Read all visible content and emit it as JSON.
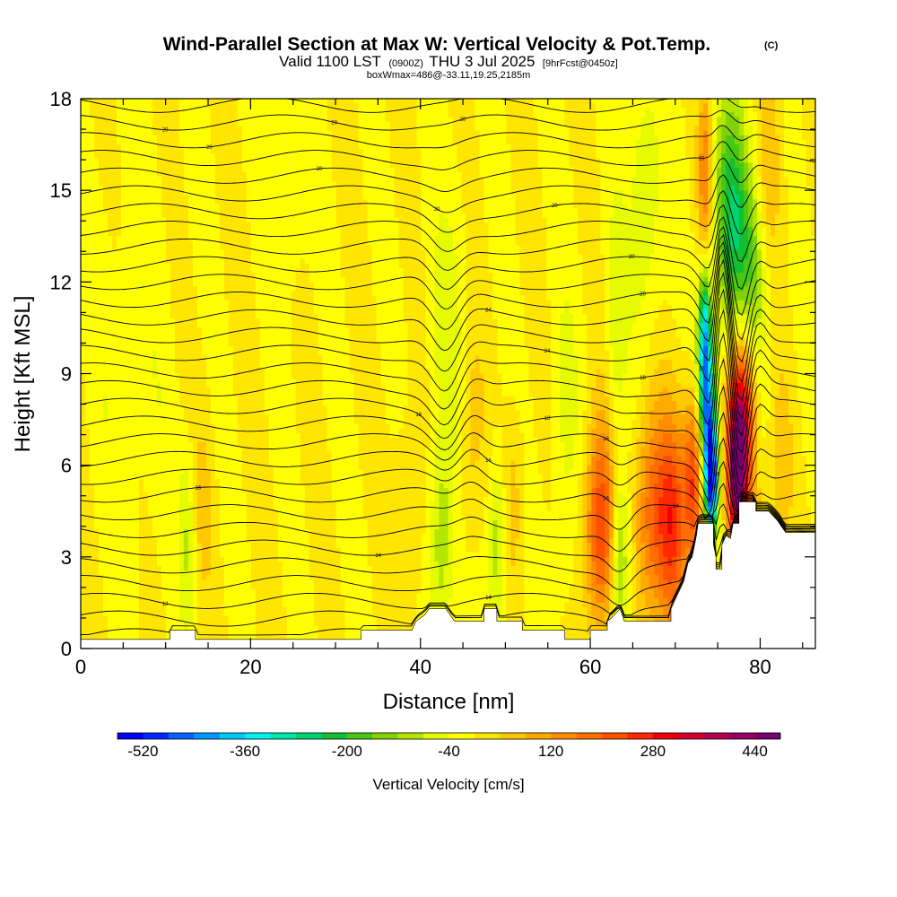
{
  "chart_data": {
    "type": "heatmap",
    "title": "Wind-Parallel Section at Max W: Vertical Velocity & Pot.Temp.",
    "title_mark": "(C)",
    "subtitle": {
      "valid": "Valid 1100 LST",
      "utc": "(0900Z)",
      "date": "THU 3 Jul 2025",
      "forecast": "[9hrFcst@0450z]"
    },
    "subtitle2": "boxWmax=486@-33.11,19.25,2185m",
    "xlabel": "Distance [nm]",
    "ylabel": "Height [Kft MSL]",
    "xlim": [
      0,
      86.5
    ],
    "ylim": [
      0,
      18
    ],
    "xticks": [
      0,
      20,
      40,
      60,
      80
    ],
    "yticks": [
      0,
      3,
      6,
      9,
      12,
      15,
      18
    ],
    "colorbar": {
      "label": "Vertical Velocity [cm/s]",
      "ticks": [
        -520,
        -360,
        -200,
        -40,
        120,
        280,
        440
      ],
      "min": -560,
      "step": 40,
      "colors": [
        "#0000ff",
        "#0028ff",
        "#0064ff",
        "#0096ff",
        "#00c8ff",
        "#00f0f0",
        "#00e6aa",
        "#00d26e",
        "#14be32",
        "#46c814",
        "#82d20a",
        "#b4e600",
        "#e6fa00",
        "#ffff00",
        "#ffe600",
        "#ffc800",
        "#ffaa00",
        "#ff8c00",
        "#ff6e00",
        "#ff5000",
        "#ff2800",
        "#f00000",
        "#d20028",
        "#b40050",
        "#960064",
        "#78006e"
      ]
    },
    "contour_labels": [
      "20",
      "20",
      "20",
      "20",
      "20",
      "20",
      "20",
      "20",
      "20",
      "20",
      "24",
      "24",
      "18",
      "18",
      "18",
      "18",
      "16",
      "16",
      "16",
      "16",
      "14",
      "14",
      "14",
      "14",
      "12"
    ],
    "blobs": [
      {
        "x": 12.5,
        "y": 3.5,
        "sx": 0.7,
        "sy": 2.3,
        "w": -80
      },
      {
        "x": 14.5,
        "y": 4.5,
        "sx": 0.9,
        "sy": 2.4,
        "w": 45
      },
      {
        "x": 24.5,
        "y": 15.0,
        "sx": 1.5,
        "sy": 2.5,
        "w": -35
      },
      {
        "x": 6.0,
        "y": 9.0,
        "sx": 3.0,
        "sy": 4.0,
        "w": -30
      },
      {
        "x": 38.5,
        "y": 4.5,
        "sx": 1.2,
        "sy": 2.4,
        "w": 55
      },
      {
        "x": 42.5,
        "y": 3.5,
        "sx": 1.0,
        "sy": 2.6,
        "w": -110
      },
      {
        "x": 43.0,
        "y": 10.5,
        "sx": 1.5,
        "sy": 3.0,
        "w": -60
      },
      {
        "x": 46.0,
        "y": 7.0,
        "sx": 1.0,
        "sy": 2.4,
        "w": 60
      },
      {
        "x": 49.0,
        "y": 3.5,
        "sx": 0.7,
        "sy": 2.1,
        "w": -110
      },
      {
        "x": 51.0,
        "y": 5.0,
        "sx": 0.9,
        "sy": 2.3,
        "w": 60
      },
      {
        "x": 57.0,
        "y": 7.0,
        "sx": 1.2,
        "sy": 3.5,
        "w": -50
      },
      {
        "x": 61.2,
        "y": 4.0,
        "sx": 1.3,
        "sy": 2.4,
        "w": 240
      },
      {
        "x": 63.5,
        "y": 3.0,
        "sx": 0.8,
        "sy": 2.0,
        "w": -160
      },
      {
        "x": 63.0,
        "y": 10.5,
        "sx": 0.8,
        "sy": 3.0,
        "w": -70
      },
      {
        "x": 67.0,
        "y": 4.5,
        "sx": 1.3,
        "sy": 2.6,
        "w": 170
      },
      {
        "x": 69.5,
        "y": 4.0,
        "sx": 1.2,
        "sy": 2.5,
        "w": 240
      },
      {
        "x": 66.5,
        "y": 14.5,
        "sx": 1.5,
        "sy": 3.5,
        "w": -70
      },
      {
        "x": 73.8,
        "y": 7.5,
        "sx": 0.7,
        "sy": 2.0,
        "w": -420
      },
      {
        "x": 74.3,
        "y": 5.5,
        "sx": 0.5,
        "sy": 1.2,
        "w": -420
      },
      {
        "x": 73.4,
        "y": 10.5,
        "sx": 0.5,
        "sy": 1.6,
        "w": -300
      },
      {
        "x": 72.3,
        "y": 5.5,
        "sx": 0.9,
        "sy": 2.0,
        "w": 250
      },
      {
        "x": 77.8,
        "y": 7.3,
        "sx": 1.1,
        "sy": 2.2,
        "w": 400
      },
      {
        "x": 77.2,
        "y": 5.5,
        "sx": 0.7,
        "sy": 1.5,
        "w": 300
      },
      {
        "x": 73.5,
        "y": 15.2,
        "sx": 0.6,
        "sy": 2.3,
        "w": 170
      },
      {
        "x": 76.5,
        "y": 14.3,
        "sx": 1.4,
        "sy": 2.8,
        "w": -220
      },
      {
        "x": 79.0,
        "y": 12.2,
        "sx": 1.5,
        "sy": 2.5,
        "w": -140
      },
      {
        "x": 81.0,
        "y": 15.5,
        "sx": 1.0,
        "sy": 2.6,
        "w": 90
      },
      {
        "x": 82.5,
        "y": 6.0,
        "sx": 0.9,
        "sy": 2.2,
        "w": 50
      },
      {
        "x": 80.5,
        "y": 3.0,
        "sx": 1.5,
        "sy": 1.5,
        "w": 60
      }
    ],
    "terrain": [
      [
        0,
        0.3
      ],
      [
        10.5,
        0.3
      ],
      [
        10.5,
        0.6
      ],
      [
        13.5,
        0.6
      ],
      [
        13.5,
        0.3
      ],
      [
        33.0,
        0.3
      ],
      [
        33.0,
        0.6
      ],
      [
        39.0,
        0.6
      ],
      [
        39.5,
        0.9
      ],
      [
        40.5,
        1.1
      ],
      [
        41.0,
        1.3
      ],
      [
        43.0,
        1.3
      ],
      [
        44.0,
        0.9
      ],
      [
        47.5,
        0.9
      ],
      [
        47.5,
        1.3
      ],
      [
        49.0,
        1.3
      ],
      [
        49.0,
        0.9
      ],
      [
        52.0,
        0.9
      ],
      [
        52.0,
        0.6
      ],
      [
        57.0,
        0.6
      ],
      [
        57.0,
        0.3
      ],
      [
        60.0,
        0.3
      ],
      [
        60.0,
        0.6
      ],
      [
        62.0,
        0.6
      ],
      [
        62.0,
        0.9
      ],
      [
        62.5,
        1.0
      ],
      [
        63.5,
        1.3
      ],
      [
        64.0,
        0.9
      ],
      [
        69.5,
        0.9
      ],
      [
        69.5,
        1.3
      ],
      [
        70.5,
        1.9
      ],
      [
        71.0,
        2.2
      ],
      [
        71.5,
        2.8
      ],
      [
        72.0,
        3.0
      ],
      [
        72.5,
        3.7
      ],
      [
        72.7,
        4.1
      ],
      [
        74.5,
        4.1
      ],
      [
        74.5,
        3.4
      ],
      [
        74.8,
        3.0
      ],
      [
        74.8,
        2.6
      ],
      [
        75.5,
        2.6
      ],
      [
        75.5,
        3.4
      ],
      [
        76.0,
        3.7
      ],
      [
        76.5,
        3.6
      ],
      [
        76.8,
        4.1
      ],
      [
        77.5,
        4.1
      ],
      [
        77.5,
        4.8
      ],
      [
        79.5,
        4.8
      ],
      [
        79.5,
        4.5
      ],
      [
        81.0,
        4.5
      ],
      [
        82.0,
        4.2
      ],
      [
        82.5,
        4.0
      ],
      [
        83.0,
        3.8
      ],
      [
        86.5,
        3.8
      ],
      [
        86.5,
        0
      ]
    ]
  }
}
